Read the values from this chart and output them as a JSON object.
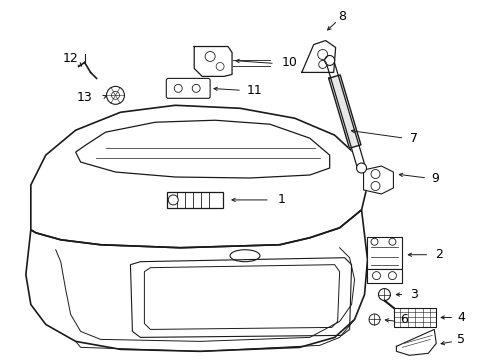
{
  "background_color": "#ffffff",
  "line_color": "#1a1a1a",
  "text_color": "#000000",
  "fig_w": 4.9,
  "fig_h": 3.6,
  "dpi": 100
}
